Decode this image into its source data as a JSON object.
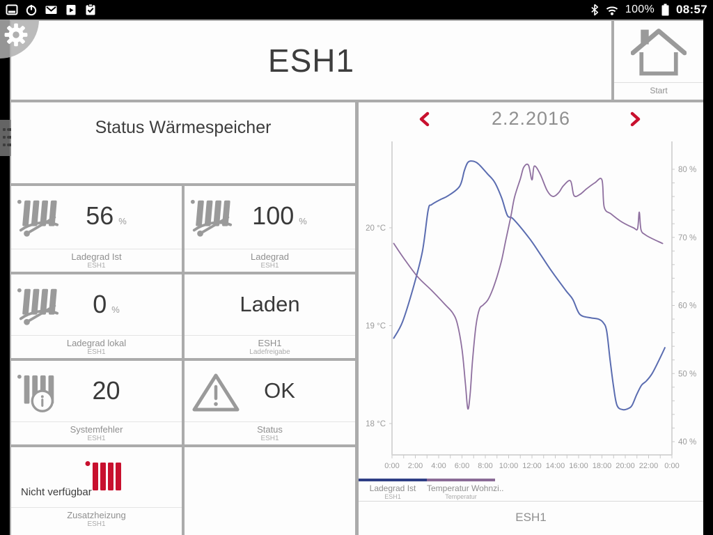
{
  "status_bar": {
    "battery_percent": "100%",
    "time": "08:57"
  },
  "header": {
    "title": "ESH1"
  },
  "start_tile": {
    "label": "Start"
  },
  "left_panel": {
    "title": "Status Wärmespeicher",
    "tiles": [
      {
        "value": "56",
        "unit": "%",
        "label": "Ladegrad Ist",
        "sublabel": "ESH1",
        "icon": "radiator-gauge-icon"
      },
      {
        "value": "100",
        "unit": "%",
        "label": "Ladegrad",
        "sublabel": "ESH1",
        "icon": "radiator-gauge-icon"
      },
      {
        "value": "0",
        "unit": "%",
        "label": "Ladegrad lokal",
        "sublabel": "ESH1",
        "icon": "radiator-gauge-icon"
      },
      {
        "value": "Laden",
        "unit": "",
        "label": "ESH1",
        "sublabel": "Ladefreigabe",
        "icon": "none"
      },
      {
        "value": "20",
        "unit": "",
        "label": "Systemfehler",
        "sublabel": "ESH1",
        "icon": "radiator-info-icon"
      },
      {
        "value": "OK",
        "unit": "",
        "label": "Status",
        "sublabel": "ESH1",
        "icon": "warning-triangle-icon"
      },
      {
        "value": "Nicht verfügbar",
        "unit": "",
        "label": "Zusatzheizung",
        "sublabel": "ESH1",
        "icon": "radiator-red-icon"
      },
      {
        "value": "",
        "unit": "",
        "label": "",
        "sublabel": "",
        "icon": "none"
      }
    ]
  },
  "chart": {
    "date": "2.2.2016",
    "footer": "ESH1",
    "legend": [
      {
        "label": "Ladegrad Ist",
        "sublabel": "ESH1",
        "color": "#2e3e85"
      },
      {
        "label": "Temperatur Wohnzi..",
        "sublabel": "Temperatur",
        "color": "#8a6a96"
      }
    ],
    "accent_red": "#c8102e"
  },
  "chart_data": {
    "type": "line",
    "title": "2.2.2016",
    "x_axis": {
      "labels": [
        "0:00",
        "2:00",
        "4:00",
        "6:00",
        "8:00",
        "10:00",
        "12:00",
        "14:00",
        "16:00",
        "18:00",
        "20:00",
        "22:00",
        "0:00"
      ],
      "hours_per_label": 2,
      "minor_step_hours": 1,
      "range_hours": [
        0,
        24
      ]
    },
    "y_left": {
      "unit": "°C",
      "ticks": [
        {
          "label": "20 °C",
          "value": 20
        },
        {
          "label": "19 °C",
          "value": 19
        },
        {
          "label": "18 °C",
          "value": 18
        }
      ],
      "range": [
        17.7,
        20.9
      ]
    },
    "y_right": {
      "unit": "%",
      "ticks": [
        {
          "label": "80 %",
          "value": 80
        },
        {
          "label": "70 %",
          "value": 70
        },
        {
          "label": "60 %",
          "value": 60
        },
        {
          "label": "50 %",
          "value": 50
        },
        {
          "label": "40 %",
          "value": 40
        }
      ],
      "minor_step": 2,
      "range": [
        38,
        84
      ]
    },
    "series": [
      {
        "name": "Ladegrad Ist",
        "axis": "right",
        "color": "#5a6cb0",
        "width": 2,
        "points": [
          [
            0.15,
            55.2
          ],
          [
            0.9,
            57.6
          ],
          [
            1.8,
            62.5
          ],
          [
            2.6,
            67.9
          ],
          [
            3.1,
            74.0
          ],
          [
            3.4,
            74.8
          ],
          [
            4.2,
            75.6
          ],
          [
            4.8,
            76.1
          ],
          [
            5.8,
            77.5
          ],
          [
            6.2,
            79.8
          ],
          [
            6.5,
            81.0
          ],
          [
            6.9,
            81.2
          ],
          [
            7.4,
            80.8
          ],
          [
            8.2,
            79.3
          ],
          [
            8.8,
            78.1
          ],
          [
            9.4,
            75.8
          ],
          [
            9.9,
            73.2
          ],
          [
            10.4,
            72.7
          ],
          [
            11.8,
            69.8
          ],
          [
            12.8,
            67.3
          ],
          [
            13.7,
            65.0
          ],
          [
            14.9,
            62.2
          ],
          [
            15.5,
            60.9
          ],
          [
            16.1,
            58.7
          ],
          [
            17.0,
            58.2
          ],
          [
            17.7,
            58.0
          ],
          [
            18.1,
            57.5
          ],
          [
            18.4,
            56.3
          ],
          [
            18.7,
            52.0
          ],
          [
            19.0,
            48.0
          ],
          [
            19.3,
            45.3
          ],
          [
            19.8,
            44.7
          ],
          [
            20.3,
            44.9
          ],
          [
            20.6,
            45.4
          ],
          [
            21.0,
            47.0
          ],
          [
            21.4,
            48.3
          ],
          [
            21.8,
            48.9
          ],
          [
            22.3,
            50.0
          ],
          [
            22.9,
            52.0
          ],
          [
            23.4,
            53.8
          ]
        ]
      },
      {
        "name": "Temperatur Wohnzimmer",
        "axis": "left",
        "color": "#8e6f9f",
        "width": 1.8,
        "points": [
          [
            0.15,
            19.84
          ],
          [
            1.0,
            19.69
          ],
          [
            2.2,
            19.5
          ],
          [
            3.4,
            19.36
          ],
          [
            4.6,
            19.21
          ],
          [
            5.2,
            19.13
          ],
          [
            5.6,
            19.02
          ],
          [
            6.0,
            18.76
          ],
          [
            6.3,
            18.4
          ],
          [
            6.5,
            18.15
          ],
          [
            6.7,
            18.3
          ],
          [
            6.9,
            18.64
          ],
          [
            7.2,
            19.0
          ],
          [
            7.5,
            19.17
          ],
          [
            7.8,
            19.21
          ],
          [
            8.2,
            19.26
          ],
          [
            8.6,
            19.36
          ],
          [
            9.0,
            19.5
          ],
          [
            9.4,
            19.67
          ],
          [
            9.8,
            19.9
          ],
          [
            10.2,
            20.12
          ],
          [
            10.5,
            20.31
          ],
          [
            11.0,
            20.5
          ],
          [
            11.3,
            20.62
          ],
          [
            11.7,
            20.64
          ],
          [
            12.0,
            20.49
          ],
          [
            12.2,
            20.63
          ],
          [
            12.7,
            20.55
          ],
          [
            13.3,
            20.38
          ],
          [
            13.8,
            20.32
          ],
          [
            14.3,
            20.36
          ],
          [
            14.7,
            20.43
          ],
          [
            15.3,
            20.48
          ],
          [
            15.6,
            20.33
          ],
          [
            16.1,
            20.34
          ],
          [
            16.7,
            20.4
          ],
          [
            17.4,
            20.46
          ],
          [
            18.0,
            20.49
          ],
          [
            18.2,
            20.21
          ],
          [
            18.8,
            20.14
          ],
          [
            19.7,
            20.06
          ],
          [
            20.7,
            20.0
          ],
          [
            21.05,
            19.99
          ],
          [
            21.2,
            20.16
          ],
          [
            21.35,
            19.98
          ],
          [
            21.7,
            19.93
          ],
          [
            22.3,
            19.89
          ],
          [
            23.2,
            19.84
          ]
        ]
      }
    ],
    "grid": false,
    "legend_position": "bottom-left"
  }
}
